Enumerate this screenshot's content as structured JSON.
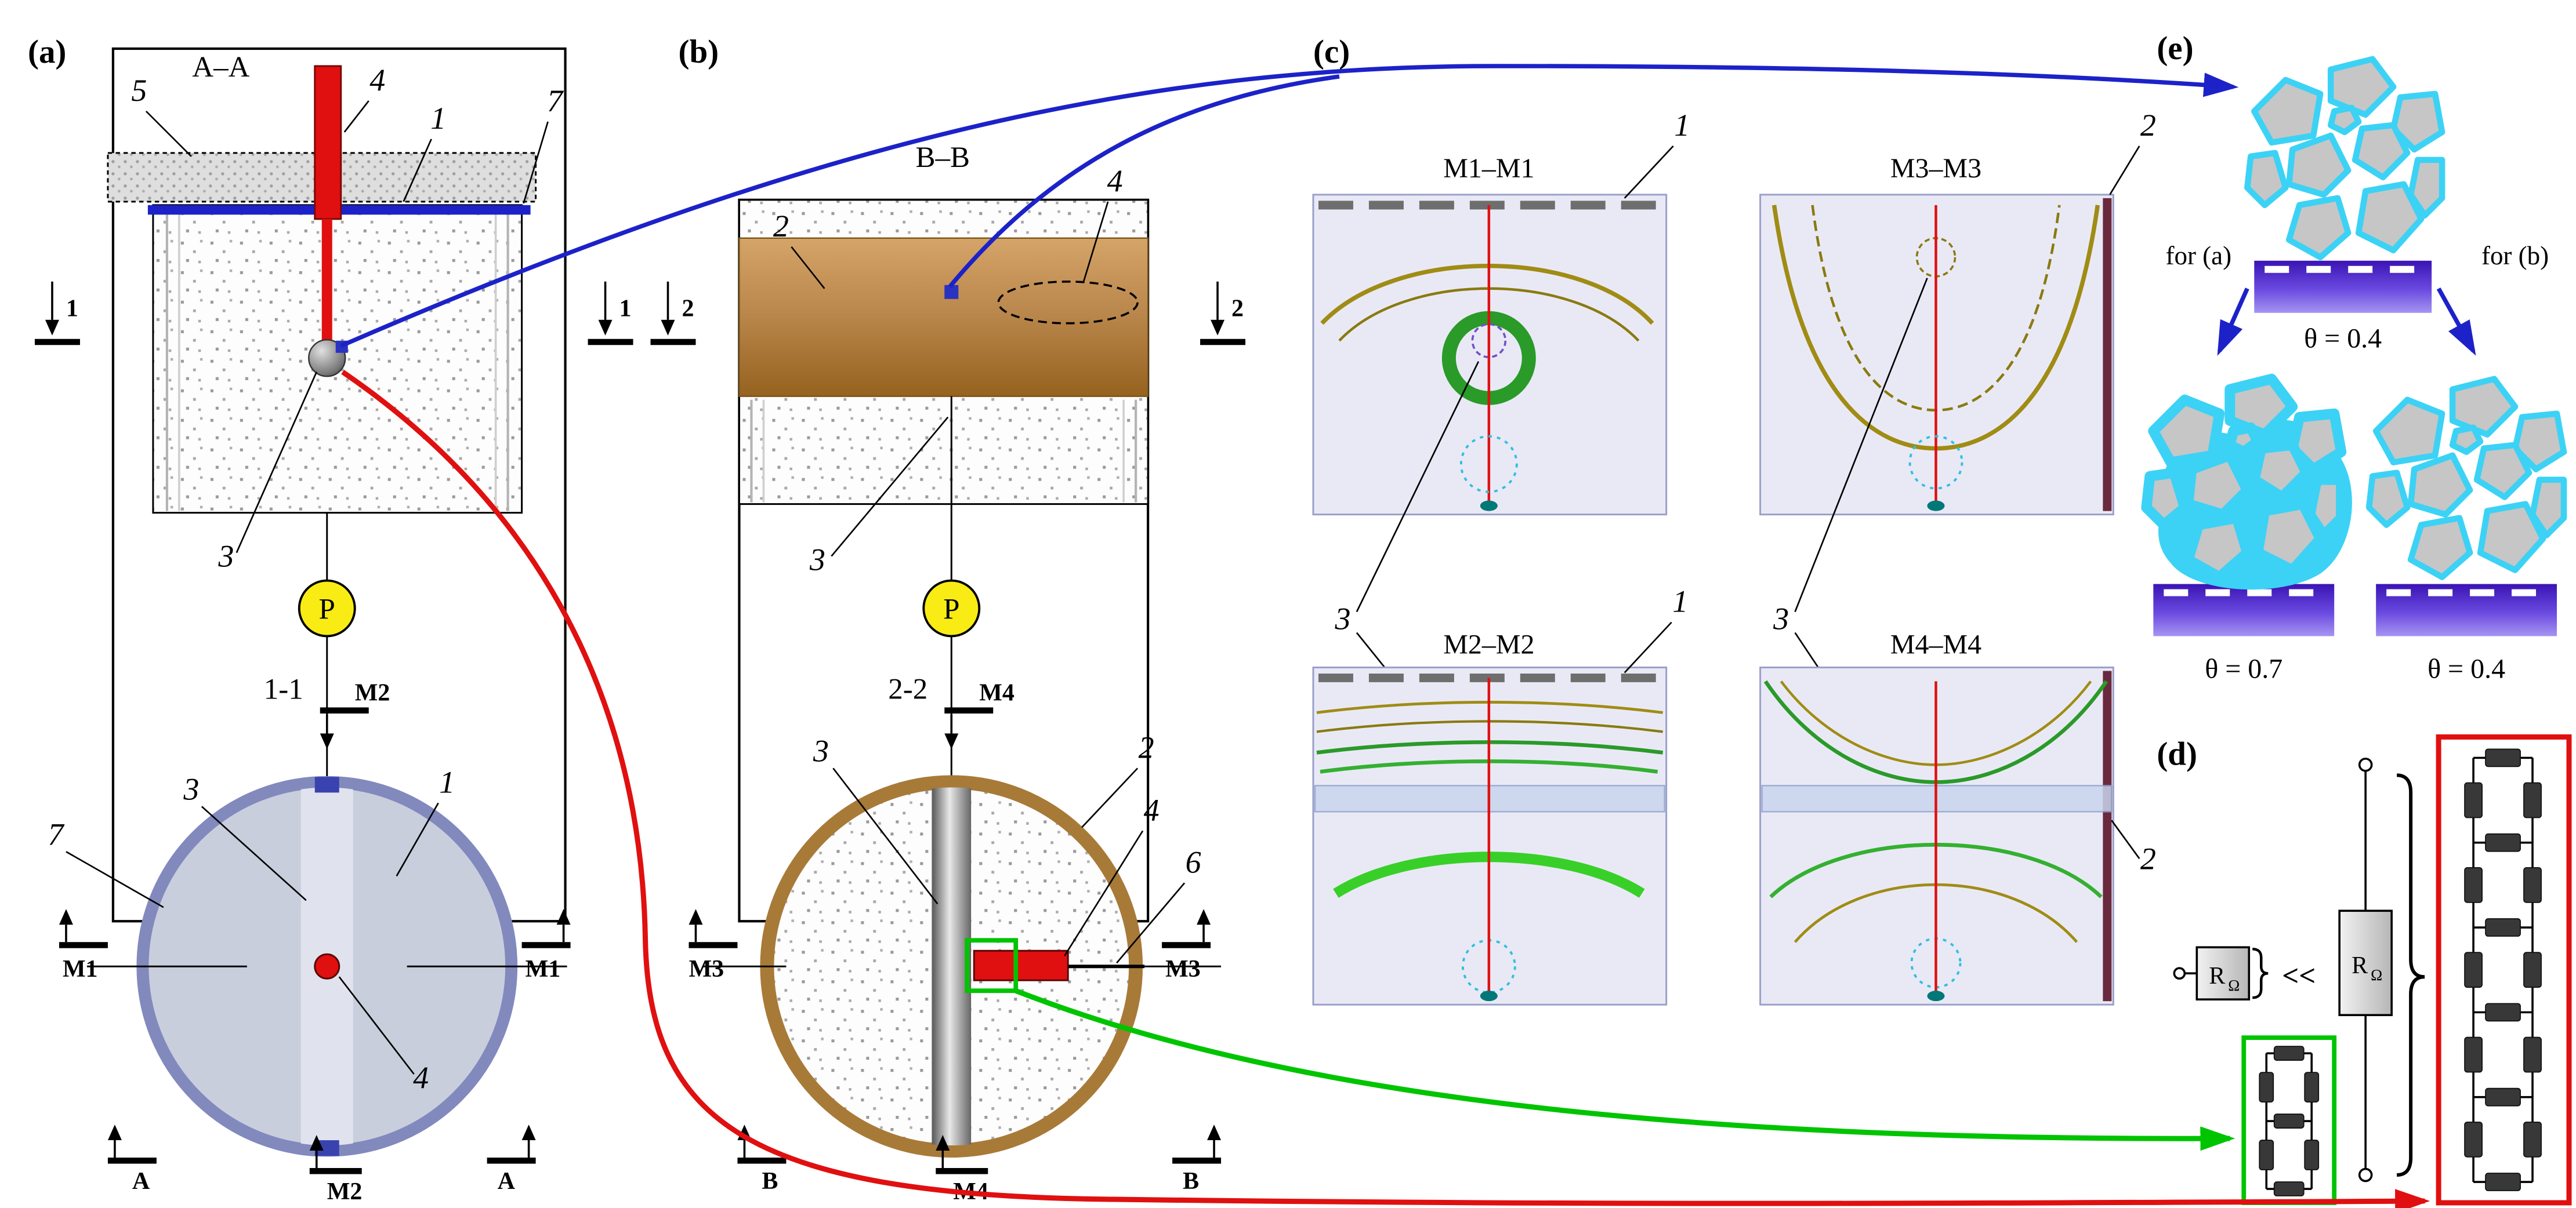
{
  "colors": {
    "red": "#e01010",
    "blue": "#1c22c8",
    "green": "#00c400",
    "yellow": "#f8ec14",
    "copper": "#b8854a",
    "olive": "#a08c14",
    "contour_green": "#2a9a28",
    "bright_green": "#38d028",
    "cyan_dotted": "#30c0e0",
    "grain_cyan": "#3cd2f5",
    "grain_gray": "#c6c6c6",
    "electrode_purple": "#4a28c8",
    "sim_background": "#e9e9f6",
    "ring_blue_gray": "#8289bd",
    "teal": "#007878",
    "resistor_dark": "#383838"
  },
  "panel_a": {
    "tag": "(a)",
    "section_title": "A–A",
    "callouts": {
      "c5": "5",
      "c4": "4",
      "c1": "1",
      "c7": "7",
      "c3": "3",
      "circ7": "7",
      "circ3": "3",
      "circ1": "1",
      "circ4": "4"
    },
    "pressure_label": "P",
    "view_label": "1-1",
    "cuts": {
      "left1": "1",
      "right1": "1",
      "m2top": "M2",
      "m2bottom": "M2",
      "m1left": "M1",
      "m1right": "M1",
      "aleft": "A",
      "aright": "A"
    }
  },
  "panel_b": {
    "tag": "(b)",
    "section_title": "B–B",
    "callouts": {
      "c2": "2",
      "c4": "4",
      "c3": "3",
      "circ3": "3",
      "circ2": "2",
      "circ4": "4",
      "circ6": "6"
    },
    "pressure_label": "P",
    "view_label": "2-2",
    "cuts": {
      "left2": "2",
      "right2": "2",
      "m4top": "M4",
      "m4bottom": "M4",
      "m3left": "M3",
      "m3right": "M3",
      "bleft": "B",
      "bright": "B"
    }
  },
  "panel_c": {
    "tag": "(c)",
    "views": [
      {
        "title": "M1–M1"
      },
      {
        "title": "M3–M3"
      },
      {
        "title": "M2–M2"
      },
      {
        "title": "M4–M4"
      }
    ],
    "callouts": {
      "m1_1": "1",
      "m3_2": "2",
      "m2_1": "1",
      "m4_2": "2",
      "left3": "3",
      "right3": "3"
    }
  },
  "panel_d": {
    "tag": "(d)",
    "resistance_symbol": "R",
    "resistance_subscript": "Ω",
    "comparison": "<<"
  },
  "panel_e": {
    "tag": "(e)",
    "for_a": "for (a)",
    "for_b": "for (b)",
    "theta_top": "θ = 0.4",
    "theta_bottom_left": "θ = 0.7",
    "theta_bottom_right": "θ = 0.4"
  }
}
